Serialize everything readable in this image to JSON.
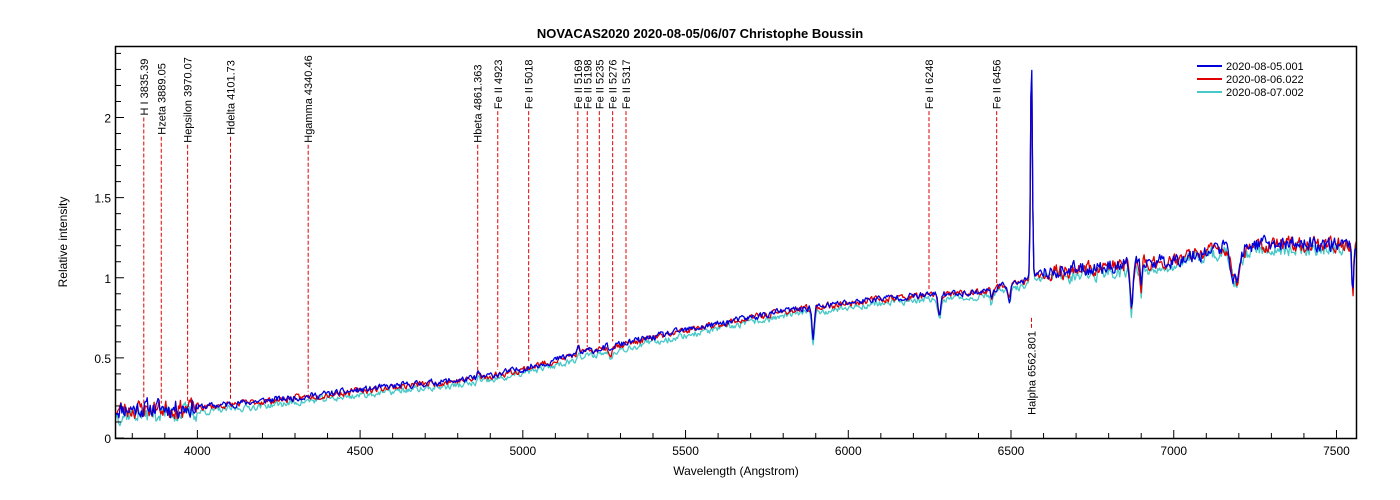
{
  "chart_data": {
    "type": "line",
    "title": "NOVACAS2020   2020-08-05/06/07   Christophe Boussin",
    "xlabel": "Wavelength (Angstrom)",
    "ylabel": "Relative intensity",
    "xlim": [
      3750,
      7560
    ],
    "ylim": [
      0,
      2.44
    ],
    "xticks": [
      4000,
      4500,
      5000,
      5500,
      6000,
      6500,
      7000,
      7500
    ],
    "xticks_minor_step": 100,
    "yticks": [
      0,
      0.5,
      1,
      1.5,
      2
    ],
    "yticks_minor_step": 0.1,
    "grid": false,
    "legend_position": "top-right",
    "series": [
      {
        "name": "2020-08-05.001",
        "color": "#0000dd",
        "seed": 11,
        "offset": 0.012
      },
      {
        "name": "2020-08-06.022",
        "color": "#e00000",
        "seed": 23,
        "offset": 0.008
      },
      {
        "name": "2020-08-07.002",
        "color": "#48c8c8",
        "seed": 37,
        "offset": -0.02
      }
    ],
    "continuum": [
      {
        "x": 3750,
        "y": 0.17
      },
      {
        "x": 4000,
        "y": 0.18
      },
      {
        "x": 4300,
        "y": 0.24
      },
      {
        "x": 4600,
        "y": 0.31
      },
      {
        "x": 4860,
        "y": 0.36
      },
      {
        "x": 5000,
        "y": 0.42
      },
      {
        "x": 5200,
        "y": 0.53
      },
      {
        "x": 5500,
        "y": 0.66
      },
      {
        "x": 5800,
        "y": 0.78
      },
      {
        "x": 6100,
        "y": 0.86
      },
      {
        "x": 6400,
        "y": 0.9
      },
      {
        "x": 6550,
        "y": 0.97
      },
      {
        "x": 6600,
        "y": 1.02
      },
      {
        "x": 6800,
        "y": 1.06
      },
      {
        "x": 7000,
        "y": 1.1
      },
      {
        "x": 7150,
        "y": 1.18
      },
      {
        "x": 7300,
        "y": 1.2
      },
      {
        "x": 7560,
        "y": 1.2
      }
    ],
    "features": [
      {
        "x": 6562.8,
        "depth": 1.4,
        "width": 4
      },
      {
        "x": 5892,
        "depth": -0.2,
        "width": 5
      },
      {
        "x": 6280,
        "depth": -0.12,
        "width": 6
      },
      {
        "x": 6870,
        "depth": -0.27,
        "width": 6
      },
      {
        "x": 6900,
        "depth": -0.2,
        "width": 4
      },
      {
        "x": 7190,
        "depth": -0.22,
        "width": 18
      },
      {
        "x": 7550,
        "depth": -0.3,
        "width": 4
      },
      {
        "x": 5270,
        "depth": -0.04,
        "width": 6
      },
      {
        "x": 6495,
        "depth": -0.09,
        "width": 5
      },
      {
        "x": 6440,
        "depth": -0.07,
        "width": 4
      },
      {
        "x": 5170,
        "depth": 0.05,
        "width": 5
      },
      {
        "x": 4863,
        "depth": 0.04,
        "width": 5
      }
    ],
    "identified_lines": [
      {
        "label": "H I 3835.39",
        "x": 3835.39,
        "y": 2.0,
        "position": "above"
      },
      {
        "label": "Hzeta 3889.05",
        "x": 3889.05,
        "y": 1.88,
        "position": "above"
      },
      {
        "label": "Hepsilon 3970.07",
        "x": 3970.07,
        "y": 1.83,
        "position": "above"
      },
      {
        "label": "Hdelta 4101.73",
        "x": 4101.73,
        "y": 1.88,
        "position": "above"
      },
      {
        "label": "Hgamma 4340.46",
        "x": 4340.46,
        "y": 1.83,
        "position": "above"
      },
      {
        "label": "Hbeta 4861.363",
        "x": 4861.363,
        "y": 1.83,
        "position": "above"
      },
      {
        "label": "Fe II 4923",
        "x": 4923,
        "y": 2.04,
        "position": "above"
      },
      {
        "label": "Fe II 5018",
        "x": 5018,
        "y": 2.04,
        "position": "above"
      },
      {
        "label": "Fe II 5169",
        "x": 5169,
        "y": 2.04,
        "position": "above"
      },
      {
        "label": "Fe II 5198",
        "x": 5198,
        "y": 2.04,
        "position": "above"
      },
      {
        "label": "Fe II 5235",
        "x": 5235,
        "y": 2.04,
        "position": "above"
      },
      {
        "label": "Fe II 5276",
        "x": 5276,
        "y": 2.04,
        "position": "above"
      },
      {
        "label": "Fe II 5317",
        "x": 5317,
        "y": 2.04,
        "position": "above"
      },
      {
        "label": "Fe II 6248",
        "x": 6248,
        "y": 2.04,
        "position": "above"
      },
      {
        "label": "Fe II 6456",
        "x": 6456,
        "y": 2.04,
        "position": "above"
      },
      {
        "label": "Halpha 6562.801",
        "x": 6562.801,
        "y": 0.75,
        "position": "below"
      }
    ]
  }
}
